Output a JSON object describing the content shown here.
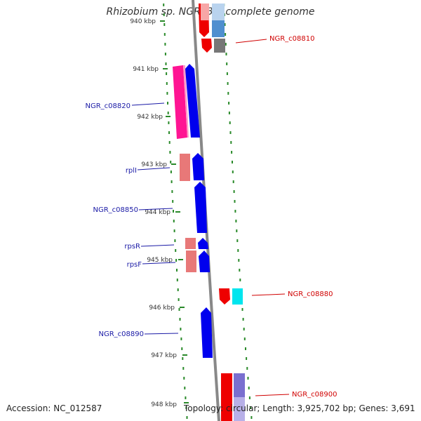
{
  "title": "Rhizobium sp. NGR234, complete genome",
  "footer": {
    "accession": "Accession: NC_012587",
    "summary": "Topology: circular; Length: 3,925,702 bp; Genes: 3,691"
  },
  "ticks": [
    {
      "label": "940 kbp"
    },
    {
      "label": "941 kbp"
    },
    {
      "label": "942 kbp"
    },
    {
      "label": "943 kbp"
    },
    {
      "label": "944 kbp"
    },
    {
      "label": "945 kbp"
    },
    {
      "label": "946 kbp"
    },
    {
      "label": "947 kbp"
    },
    {
      "label": "948 kbp"
    }
  ],
  "genes": [
    {
      "label": "NGR_c08810",
      "strand": "reverse",
      "color": "#e31a1c"
    },
    {
      "label": "NGR_c08820",
      "strand": "forward",
      "color": "#1f1fcc"
    },
    {
      "label": "rplI",
      "strand": "forward",
      "color": "#1f1fcc"
    },
    {
      "label": "NGR_c08850",
      "strand": "forward",
      "color": "#1f1fcc"
    },
    {
      "label": "rpsR",
      "strand": "forward",
      "color": "#1f1fcc"
    },
    {
      "label": "rpsF",
      "strand": "forward",
      "color": "#1f1fcc"
    },
    {
      "label": "NGR_c08880",
      "strand": "reverse",
      "color": "#e31a1c"
    },
    {
      "label": "NGR_c08890",
      "strand": "forward",
      "color": "#1f1fcc"
    },
    {
      "label": "NGR_c08900",
      "strand": "reverse",
      "color": "#e31a1c"
    }
  ],
  "colors": {
    "forward_label": "#1a1aa6",
    "reverse_label": "#d00000",
    "backbone": "#888888",
    "dots": "#2a8a2a",
    "ticks": "#2a8a2a",
    "forward_cds": "#0000ee",
    "forward_rna": "#ff1493",
    "forward_rna_light": "#f08080",
    "reverse_cds": "#ee0000",
    "reverse_gray": "#777777",
    "reverse_blue": "#4f8fcf",
    "reverse_cyan": "#00e5ee",
    "reverse_lavender": "#7a6fd0"
  }
}
